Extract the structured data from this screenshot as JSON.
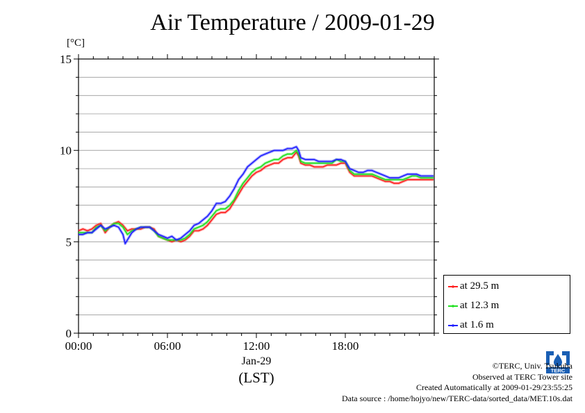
{
  "chart_data": {
    "type": "line",
    "title": "Air Temperature / 2009-01-29",
    "ylabel": "[°C]",
    "xlabel": "(LST)",
    "x_date_label": "Jan-29",
    "xlim": [
      0,
      24
    ],
    "ylim": [
      0,
      15
    ],
    "yticks": [
      0,
      5,
      10,
      15
    ],
    "xticks": [
      0,
      6,
      12,
      18
    ],
    "xtick_labels": [
      "00:00",
      "06:00",
      "12:00",
      "18:00"
    ],
    "grid": true,
    "legend_position": "bottom-right",
    "series": [
      {
        "name": "at 29.5 m",
        "color": "#ff2020",
        "x": [
          0,
          0.3,
          0.6,
          0.9,
          1.2,
          1.5,
          1.8,
          2.1,
          2.4,
          2.7,
          3.0,
          3.3,
          3.6,
          3.9,
          4.2,
          4.5,
          4.8,
          5.1,
          5.4,
          5.7,
          6.0,
          6.3,
          6.6,
          6.9,
          7.2,
          7.5,
          7.8,
          8.1,
          8.4,
          8.7,
          9.0,
          9.3,
          9.6,
          9.9,
          10.2,
          10.5,
          10.8,
          11.1,
          11.4,
          11.7,
          12.0,
          12.3,
          12.6,
          12.9,
          13.2,
          13.5,
          13.8,
          14.1,
          14.4,
          14.7,
          14.85,
          15.0,
          15.3,
          15.6,
          15.9,
          16.2,
          16.5,
          16.8,
          17.1,
          17.4,
          17.7,
          18.0,
          18.3,
          18.6,
          18.9,
          19.2,
          19.5,
          19.8,
          20.1,
          20.4,
          20.7,
          21.0,
          21.3,
          21.6,
          21.9,
          22.2,
          22.5,
          22.8,
          23.1,
          23.4,
          23.7,
          23.95
        ],
        "y": [
          5.6,
          5.7,
          5.6,
          5.7,
          5.9,
          6.0,
          5.5,
          5.8,
          6.0,
          6.1,
          5.9,
          5.6,
          5.7,
          5.7,
          5.7,
          5.8,
          5.8,
          5.7,
          5.3,
          5.2,
          5.1,
          5.0,
          5.1,
          5.0,
          5.1,
          5.3,
          5.6,
          5.6,
          5.7,
          5.9,
          6.2,
          6.5,
          6.6,
          6.6,
          6.8,
          7.2,
          7.6,
          8.0,
          8.3,
          8.6,
          8.8,
          8.9,
          9.1,
          9.2,
          9.3,
          9.3,
          9.5,
          9.6,
          9.6,
          9.9,
          9.7,
          9.3,
          9.2,
          9.2,
          9.1,
          9.1,
          9.1,
          9.2,
          9.2,
          9.2,
          9.3,
          9.3,
          8.8,
          8.6,
          8.6,
          8.6,
          8.6,
          8.6,
          8.5,
          8.4,
          8.3,
          8.3,
          8.2,
          8.2,
          8.3,
          8.4,
          8.4,
          8.4,
          8.4,
          8.4,
          8.4,
          8.4
        ]
      },
      {
        "name": "at 12.3 m",
        "color": "#20e020",
        "x": [
          0,
          0.3,
          0.6,
          0.9,
          1.2,
          1.5,
          1.8,
          2.1,
          2.4,
          2.7,
          3.0,
          3.3,
          3.6,
          3.9,
          4.2,
          4.5,
          4.8,
          5.1,
          5.4,
          5.7,
          6.0,
          6.3,
          6.6,
          6.9,
          7.2,
          7.5,
          7.8,
          8.1,
          8.4,
          8.7,
          9.0,
          9.3,
          9.6,
          9.9,
          10.2,
          10.5,
          10.8,
          11.1,
          11.4,
          11.7,
          12.0,
          12.3,
          12.6,
          12.9,
          13.2,
          13.5,
          13.8,
          14.1,
          14.4,
          14.7,
          14.85,
          15.0,
          15.3,
          15.6,
          15.9,
          16.2,
          16.5,
          16.8,
          17.1,
          17.4,
          17.7,
          18.0,
          18.3,
          18.6,
          18.9,
          19.2,
          19.5,
          19.8,
          20.1,
          20.4,
          20.7,
          21.0,
          21.3,
          21.6,
          21.9,
          22.2,
          22.5,
          22.8,
          23.1,
          23.4,
          23.7,
          23.95
        ],
        "y": [
          5.5,
          5.5,
          5.5,
          5.5,
          5.8,
          5.9,
          5.6,
          5.8,
          6.0,
          6.0,
          5.8,
          5.4,
          5.6,
          5.7,
          5.8,
          5.8,
          5.8,
          5.6,
          5.3,
          5.2,
          5.1,
          5.1,
          5.1,
          5.1,
          5.2,
          5.4,
          5.7,
          5.8,
          5.9,
          6.1,
          6.4,
          6.7,
          6.8,
          6.8,
          7.0,
          7.3,
          7.8,
          8.2,
          8.5,
          8.8,
          9.0,
          9.1,
          9.3,
          9.4,
          9.5,
          9.5,
          9.7,
          9.8,
          9.8,
          10.0,
          9.8,
          9.4,
          9.3,
          9.3,
          9.3,
          9.3,
          9.3,
          9.3,
          9.3,
          9.5,
          9.4,
          9.4,
          8.9,
          8.7,
          8.7,
          8.7,
          8.7,
          8.7,
          8.6,
          8.5,
          8.4,
          8.4,
          8.4,
          8.4,
          8.4,
          8.5,
          8.6,
          8.6,
          8.5,
          8.5,
          8.5,
          8.5
        ]
      },
      {
        "name": "at 1.6 m",
        "color": "#2020ff",
        "x": [
          0,
          0.3,
          0.6,
          0.9,
          1.2,
          1.5,
          1.8,
          2.1,
          2.4,
          2.7,
          3.0,
          3.15,
          3.3,
          3.6,
          3.9,
          4.2,
          4.5,
          4.8,
          5.1,
          5.4,
          5.7,
          6.0,
          6.3,
          6.6,
          6.9,
          7.2,
          7.5,
          7.8,
          8.1,
          8.4,
          8.7,
          9.0,
          9.3,
          9.6,
          9.9,
          10.2,
          10.5,
          10.8,
          11.1,
          11.4,
          11.7,
          12.0,
          12.3,
          12.6,
          12.9,
          13.2,
          13.5,
          13.8,
          14.1,
          14.4,
          14.7,
          14.85,
          15.0,
          15.3,
          15.6,
          15.9,
          16.2,
          16.5,
          16.8,
          17.1,
          17.4,
          17.7,
          18.0,
          18.3,
          18.6,
          18.9,
          19.2,
          19.5,
          19.8,
          20.1,
          20.4,
          20.7,
          21.0,
          21.3,
          21.6,
          21.9,
          22.2,
          22.5,
          22.8,
          23.1,
          23.4,
          23.7,
          23.95
        ],
        "y": [
          5.4,
          5.4,
          5.5,
          5.5,
          5.7,
          5.9,
          5.7,
          5.8,
          5.9,
          5.8,
          5.4,
          4.9,
          5.1,
          5.5,
          5.7,
          5.8,
          5.8,
          5.8,
          5.6,
          5.4,
          5.3,
          5.2,
          5.3,
          5.1,
          5.2,
          5.4,
          5.6,
          5.9,
          6.0,
          6.2,
          6.4,
          6.7,
          7.1,
          7.1,
          7.2,
          7.5,
          7.9,
          8.4,
          8.7,
          9.1,
          9.3,
          9.5,
          9.7,
          9.8,
          9.9,
          10.0,
          10.0,
          10.0,
          10.1,
          10.1,
          10.2,
          10.0,
          9.6,
          9.5,
          9.5,
          9.5,
          9.4,
          9.4,
          9.4,
          9.4,
          9.5,
          9.5,
          9.4,
          9.0,
          8.9,
          8.8,
          8.8,
          8.9,
          8.9,
          8.8,
          8.7,
          8.6,
          8.5,
          8.5,
          8.5,
          8.6,
          8.7,
          8.7,
          8.7,
          8.6,
          8.6,
          8.6,
          8.6
        ]
      }
    ]
  },
  "credits": {
    "copyright": "©TERC, Univ. Tsukuba",
    "observed": "Observed at TERC Tower site",
    "created": "Created Automatically at 2009-01-29/23:55:25",
    "source": "Data source : /home/hojyo/new/TERC-data/sorted_data/MET.10s.dat"
  },
  "logo": {
    "text": "TERC",
    "color": "#1a5fb4"
  }
}
